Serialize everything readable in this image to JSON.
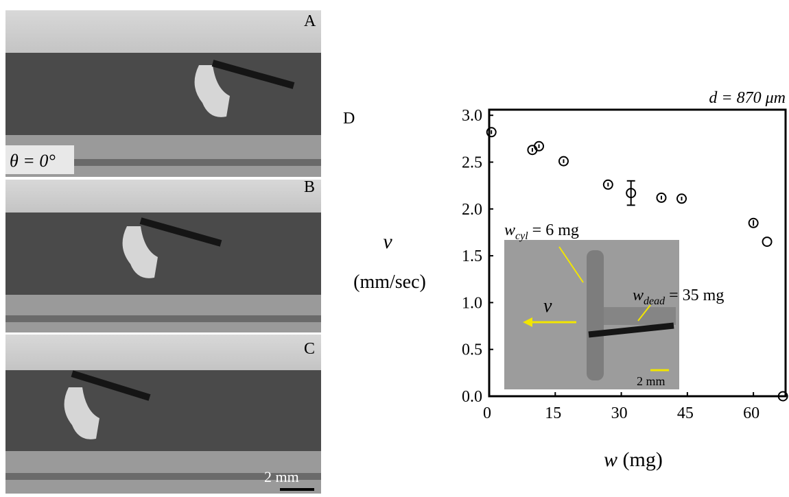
{
  "panels": {
    "a": "A",
    "b": "B",
    "c": "C",
    "angle_label": "θ = 0°",
    "scale_bar": "2 mm"
  },
  "chart_data": {
    "type": "scatter",
    "panel_label": "D",
    "annotation": "d = 870 μm",
    "ylabel": {
      "symbol": "v",
      "unit": "(mm/sec)"
    },
    "xlabel": {
      "symbol": "w",
      "unit": "(mg)"
    },
    "x": [
      0.5,
      9.8,
      11.3,
      16.9,
      27.0,
      32.2,
      39.1,
      43.7,
      60.0,
      63.1,
      66.7
    ],
    "values": [
      2.82,
      2.63,
      2.67,
      2.51,
      2.26,
      2.17,
      2.12,
      2.11,
      1.85,
      1.65,
      0.0
    ],
    "errors": [
      0.02,
      0.02,
      0.02,
      0.02,
      0.02,
      0.13,
      0.02,
      0.02,
      0.03,
      null,
      null
    ],
    "color": "#000000",
    "xlim": [
      0,
      67.3
    ],
    "ylim": [
      0,
      3.06
    ],
    "xticks": [
      0,
      15,
      30,
      45,
      60
    ],
    "yticks": [
      {
        "value": 0,
        "label": "0.0"
      },
      0.5,
      {
        "value": 1,
        "label": "1.0"
      },
      1.5,
      {
        "value": 2,
        "label": "2.0"
      },
      2.5,
      {
        "value": 3,
        "label": "3.0"
      }
    ],
    "inset": {
      "cyl": {
        "symbol": "w",
        "sub": "cyl",
        "rest": " = 6 mg"
      },
      "dead": {
        "symbol": "w",
        "sub": "dead",
        "rest": " = 35 mg"
      },
      "velocity": "v",
      "scale_bar": "2 mm"
    }
  }
}
